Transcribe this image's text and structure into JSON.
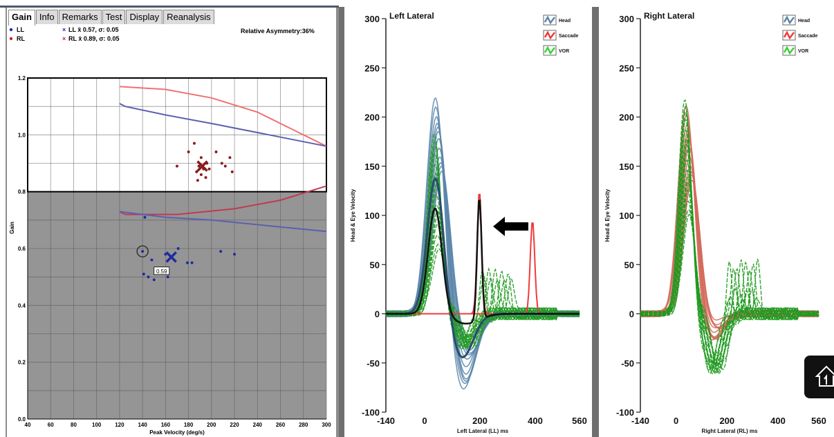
{
  "colors": {
    "head": "#5b86aa",
    "saccade": "#ef3a3a",
    "vor": "#1f9a1f",
    "shade": "#959595"
  },
  "gain_panel": {
    "tabs": [
      {
        "label": "Gain",
        "active": true
      },
      {
        "label": "Info",
        "active": false
      },
      {
        "label": "Remarks",
        "active": false
      },
      {
        "label": "Test",
        "active": false
      },
      {
        "label": "Display",
        "active": false
      },
      {
        "label": "Reanalysis",
        "active": false
      }
    ],
    "legend": {
      "ll_label": "LL",
      "rl_label": "RL",
      "ll_stat": "LL x̄ 0.57, σ: 0.05",
      "rl_stat": "RL x̄ 0.89, σ: 0.05",
      "asymmetry": "Relative Asymmetry:36%"
    },
    "marker_label": "0.59",
    "chart_data": {
      "type": "scatter",
      "xlabel": "Peak Velocity (deg/s)",
      "ylabel": "Gain",
      "xlim": [
        40,
        300
      ],
      "ylim": [
        0.0,
        1.2
      ],
      "x_ticks": [
        40,
        60,
        80,
        100,
        120,
        140,
        160,
        180,
        200,
        220,
        240,
        260,
        280,
        300
      ],
      "y_ticks": [
        "0.0",
        "0.2",
        "0.4",
        "0.6",
        "0.8",
        "1.0",
        "1.2"
      ],
      "series": [
        {
          "name": "RL",
          "color": "#8a1c1c",
          "points": [
            [
              185,
              0.97
            ],
            [
              180,
              0.94
            ],
            [
              191,
              0.92
            ],
            [
              196,
              0.9
            ],
            [
              189,
              0.89
            ],
            [
              193,
              0.88
            ],
            [
              198,
              0.88
            ],
            [
              187,
              0.87
            ],
            [
              191,
              0.86
            ],
            [
              195,
              0.85
            ],
            [
              188,
              0.84
            ],
            [
              170,
              0.89
            ],
            [
              212,
              0.89
            ],
            [
              216,
              0.92
            ],
            [
              218,
              0.87
            ],
            [
              204,
              0.94
            ],
            [
              209,
              0.9
            ]
          ]
        },
        {
          "name": "LL",
          "color": "#1f2aa0",
          "points": [
            [
              142,
              0.71
            ],
            [
              148,
              0.56
            ],
            [
              160,
              0.58
            ],
            [
              171,
              0.6
            ],
            [
              179,
              0.55
            ],
            [
              183,
              0.55
            ],
            [
              208,
              0.59
            ],
            [
              220,
              0.58
            ],
            [
              145,
              0.5
            ],
            [
              141,
              0.51
            ],
            [
              150,
              0.49
            ],
            [
              162,
              0.5
            ]
          ]
        }
      ],
      "means": [
        {
          "name": "RL",
          "x": 192,
          "y": 0.89
        },
        {
          "name": "LL",
          "x": 165,
          "y": 0.57
        }
      ]
    }
  },
  "left_chart": {
    "title": "Left Lateral",
    "xlabel": "Left Lateral (LL) ms",
    "ylabel": "Head & Eye Velocity",
    "legend": [
      "Head",
      "Saccade",
      "VOR"
    ],
    "chart_data": {
      "type": "line",
      "xlim": [
        -140,
        560
      ],
      "ylim": [
        -100,
        300
      ],
      "x_ticks": [
        -140,
        0,
        200,
        400,
        560
      ],
      "y_ticks": [
        300,
        250,
        200,
        150,
        100,
        50,
        0,
        -50,
        -100
      ],
      "head_peak": 220,
      "head_undershoot": -80,
      "saccade_peaks": [
        [
          198,
          125
        ],
        [
          390,
          95
        ]
      ],
      "vor_peak": 185
    }
  },
  "right_chart": {
    "title": "Right Lateral",
    "xlabel": "Right Lateral (RL) ms",
    "ylabel": "Head & Eye Velocity",
    "legend": [
      "Head",
      "Saccade",
      "VOR"
    ],
    "chart_data": {
      "type": "line",
      "xlim": [
        -140,
        560
      ],
      "ylim": [
        -100,
        300
      ],
      "x_ticks": [
        -140,
        0,
        200,
        400,
        560
      ],
      "y_ticks": [
        300,
        250,
        200,
        150,
        100,
        50,
        0,
        -50,
        -100
      ],
      "head_peak": 210,
      "vor_peak": 220
    }
  }
}
